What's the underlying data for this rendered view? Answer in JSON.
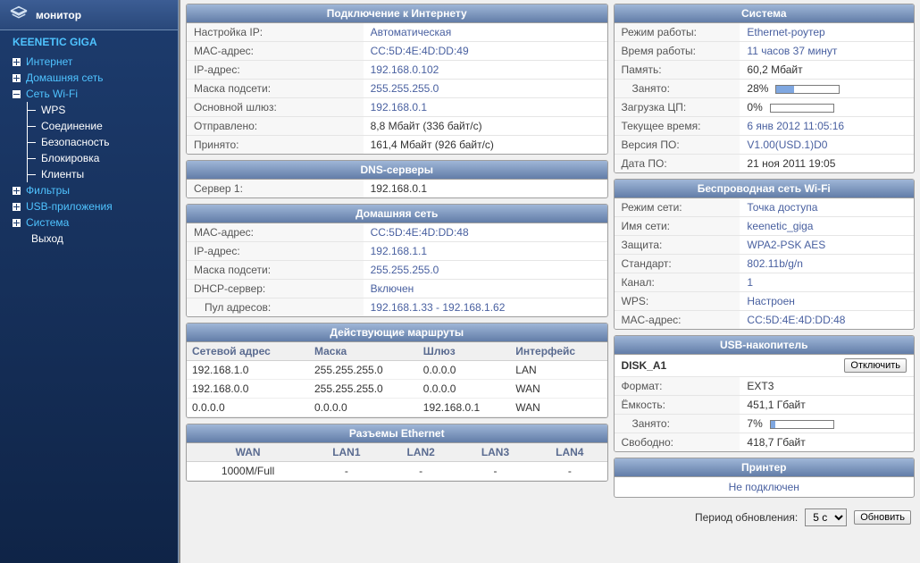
{
  "sidebar": {
    "header": "монитор",
    "device": "KEENETIC GIGA",
    "items": [
      {
        "label": "Интернет",
        "type": "top",
        "color": "blue",
        "expandable": true,
        "open": false
      },
      {
        "label": "Домашняя сеть",
        "type": "top",
        "color": "blue",
        "expandable": true,
        "open": false
      },
      {
        "label": "Сеть Wi-Fi",
        "type": "top",
        "color": "blue",
        "expandable": true,
        "open": true
      },
      {
        "label": "WPS",
        "type": "sub"
      },
      {
        "label": "Соединение",
        "type": "sub"
      },
      {
        "label": "Безопасность",
        "type": "sub"
      },
      {
        "label": "Блокировка",
        "type": "sub"
      },
      {
        "label": "Клиенты",
        "type": "sub"
      },
      {
        "label": "Фильтры",
        "type": "top",
        "color": "blue",
        "expandable": true,
        "open": false
      },
      {
        "label": "USB-приложения",
        "type": "top",
        "color": "blue",
        "expandable": true,
        "open": false
      },
      {
        "label": "Система",
        "type": "top",
        "color": "blue",
        "expandable": true,
        "open": false
      },
      {
        "label": "Выход",
        "type": "top",
        "expandable": false
      }
    ]
  },
  "internet": {
    "title": "Подключение к Интернету",
    "rows": [
      {
        "k": "Настройка IP:",
        "v": "Автоматическая",
        "style": "link"
      },
      {
        "k": "MAC-адрес:",
        "v": "CC:5D:4E:4D:DD:49",
        "style": "link"
      },
      {
        "k": "IP-адрес:",
        "v": "192.168.0.102",
        "style": "link"
      },
      {
        "k": "Маска подсети:",
        "v": "255.255.255.0",
        "style": "link"
      },
      {
        "k": "Основной шлюз:",
        "v": "192.168.0.1",
        "style": "link"
      },
      {
        "k": "Отправлено:",
        "v": "8,8 Мбайт (336 байт/с)",
        "style": "plain"
      },
      {
        "k": "Принято:",
        "v": "161,4 Мбайт (926 байт/с)",
        "style": "plain"
      }
    ]
  },
  "dns": {
    "title": "DNS-серверы",
    "rows": [
      {
        "k": "Сервер 1:",
        "v": "192.168.0.1",
        "style": "plain"
      }
    ]
  },
  "home": {
    "title": "Домашняя сеть",
    "rows": [
      {
        "k": "MAC-адрес:",
        "v": "CC:5D:4E:4D:DD:48",
        "style": "link"
      },
      {
        "k": "IP-адрес:",
        "v": "192.168.1.1",
        "style": "link"
      },
      {
        "k": "Маска подсети:",
        "v": "255.255.255.0",
        "style": "link"
      },
      {
        "k": "DHCP-сервер:",
        "v": "Включен",
        "style": "link"
      },
      {
        "k": "Пул адресов:",
        "v": "192.168.1.33 - 192.168.1.62",
        "style": "link",
        "nested": true
      }
    ]
  },
  "routes": {
    "title": "Действующие маршруты",
    "headers": [
      "Сетевой адрес",
      "Маска",
      "Шлюз",
      "Интерфейс"
    ],
    "rows": [
      [
        "192.168.1.0",
        "255.255.255.0",
        "0.0.0.0",
        "LAN"
      ],
      [
        "192.168.0.0",
        "255.255.255.0",
        "0.0.0.0",
        "WAN"
      ],
      [
        "0.0.0.0",
        "0.0.0.0",
        "192.168.0.1",
        "WAN"
      ]
    ]
  },
  "eth": {
    "title": "Разъемы Ethernet",
    "headers": [
      "WAN",
      "LAN1",
      "LAN2",
      "LAN3",
      "LAN4"
    ],
    "row": [
      "1000M/Full",
      "-",
      "-",
      "-",
      "-"
    ]
  },
  "system": {
    "title": "Система",
    "rows": [
      {
        "k": "Режим работы:",
        "v": "Ethernet-роутер",
        "style": "link"
      },
      {
        "k": "Время работы:",
        "v": "11 часов 37 минут",
        "style": "link"
      },
      {
        "k": "Память:",
        "v": "60,2 Мбайт",
        "style": "plain"
      },
      {
        "k": "Занято:",
        "v": "28%",
        "style": "plain",
        "bar": 28,
        "nested": true
      },
      {
        "k": "Загрузка ЦП:",
        "v": "0%",
        "style": "plain",
        "bar": 0
      },
      {
        "k": "Текущее время:",
        "v": "6 янв 2012 11:05:16",
        "style": "link"
      },
      {
        "k": "Версия ПО:",
        "v": "V1.00(USD.1)D0",
        "style": "link"
      },
      {
        "k": "Дата ПО:",
        "v": "21 ноя 2011 19:05",
        "style": "plain"
      }
    ]
  },
  "wifi": {
    "title": "Беспроводная сеть Wi-Fi",
    "rows": [
      {
        "k": "Режим сети:",
        "v": "Точка доступа",
        "style": "link"
      },
      {
        "k": "Имя сети:",
        "v": "keenetic_giga",
        "style": "link"
      },
      {
        "k": "Защита:",
        "v": "WPA2-PSK AES",
        "style": "link"
      },
      {
        "k": "Стандарт:",
        "v": "802.11b/g/n",
        "style": "link"
      },
      {
        "k": "Канал:",
        "v": "1",
        "style": "link"
      },
      {
        "k": "WPS:",
        "v": "Настроен",
        "style": "link"
      },
      {
        "k": "MAC-адрес:",
        "v": "CC:5D:4E:4D:DD:48",
        "style": "link"
      }
    ]
  },
  "usb": {
    "title": "USB-накопитель",
    "disk": "DISK_A1",
    "disconnect": "Отключить",
    "rows": [
      {
        "k": "Формат:",
        "v": "EXT3",
        "style": "plain"
      },
      {
        "k": "Ёмкость:",
        "v": "451,1 Гбайт",
        "style": "plain"
      },
      {
        "k": "Занято:",
        "v": "7%",
        "style": "plain",
        "bar": 7,
        "nested": true
      },
      {
        "k": "Свободно:",
        "v": "418,7 Гбайт",
        "style": "plain"
      }
    ]
  },
  "printer": {
    "title": "Принтер",
    "status": "Не подключен"
  },
  "footer": {
    "label": "Период обновления:",
    "selected": "5 с",
    "refresh": "Обновить"
  }
}
